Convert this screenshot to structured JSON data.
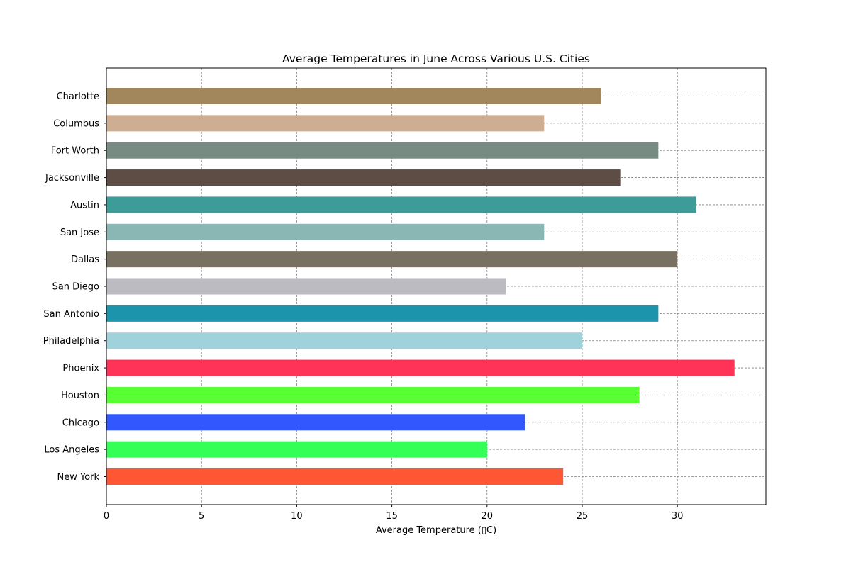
{
  "chart_data": {
    "type": "bar",
    "orientation": "horizontal",
    "title": "Average Temperatures in June Across Various U.S. Cities",
    "xlabel": "Average Temperature (▯C)",
    "ylabel": "",
    "xlim": [
      0,
      34.65
    ],
    "xticks": [
      "0",
      "5",
      "10",
      "15",
      "20",
      "25",
      "30"
    ],
    "grid": true,
    "categories": [
      "New York",
      "Los Angeles",
      "Chicago",
      "Houston",
      "Phoenix",
      "Philadelphia",
      "San Antonio",
      "San Diego",
      "Dallas",
      "San Jose",
      "Austin",
      "Jacksonville",
      "Fort Worth",
      "Columbus",
      "Charlotte"
    ],
    "values": [
      24,
      20,
      22,
      28,
      33,
      25,
      29,
      21,
      30,
      23,
      31,
      27,
      29,
      23,
      26
    ],
    "colors": [
      "#ff5733",
      "#33ff57",
      "#3357ff",
      "#57ff33",
      "#ff3357",
      "#a0d2db",
      "#1c95ac",
      "#bdbbc2",
      "#787161",
      "#8ab6b4",
      "#3d9c98",
      "#5d4d44",
      "#788b83",
      "#ceae93",
      "#a2875d"
    ]
  }
}
